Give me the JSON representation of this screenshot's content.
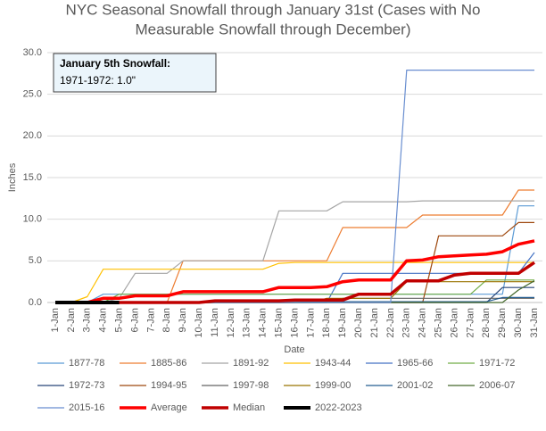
{
  "chart_data": {
    "type": "line",
    "title": [
      "NYC Seasonal Snowfall through January 31st (Cases with No",
      "Measurable Snowfall through December)"
    ],
    "x_label": "Date",
    "y_label": "Inches",
    "annotation": [
      "January 5th Snowfall:",
      "1971-1972: 1.0\""
    ],
    "categories": [
      "1-Jan",
      "2-Jan",
      "3-Jan",
      "4-Jan",
      "5-Jan",
      "6-Jan",
      "7-Jan",
      "8-Jan",
      "9-Jan",
      "10-Jan",
      "11-Jan",
      "12-Jan",
      "13-Jan",
      "14-Jan",
      "15-Jan",
      "16-Jan",
      "17-Jan",
      "18-Jan",
      "19-Jan",
      "20-Jan",
      "21-Jan",
      "22-Jan",
      "23-Jan",
      "24-Jan",
      "25-Jan",
      "26-Jan",
      "27-Jan",
      "28-Jan",
      "29-Jan",
      "30-Jan",
      "31-Jan"
    ],
    "ylim": [
      0,
      30
    ],
    "yticks": [
      {
        "value": 0,
        "label": "0.0"
      },
      {
        "value": 5,
        "label": "5.0"
      },
      {
        "value": 10,
        "label": "10.0"
      },
      {
        "value": 15,
        "label": "15.0"
      },
      {
        "value": 20,
        "label": "20.0"
      },
      {
        "value": 25,
        "label": "25.0"
      },
      {
        "value": 30,
        "label": "30.0"
      }
    ],
    "grid": true,
    "legend": "bottom",
    "series": [
      {
        "name": "1877-78",
        "color": "#5b9bd5",
        "line_width": 1.2,
        "values": [
          0,
          0,
          0,
          1.0,
          1.0,
          1.0,
          1.0,
          1.0,
          1.0,
          1.0,
          1.0,
          1.0,
          1.0,
          1.0,
          1.0,
          1.0,
          1.0,
          1.0,
          1.0,
          1.0,
          1.0,
          1.0,
          1.0,
          1.0,
          1.0,
          1.0,
          1.0,
          1.0,
          1.0,
          11.6,
          11.6
        ]
      },
      {
        "name": "1885-86",
        "color": "#ed7d31",
        "line_width": 1.2,
        "values": [
          0,
          0,
          0,
          0,
          0,
          0,
          0,
          0,
          5.0,
          5.0,
          5.0,
          5.0,
          5.0,
          5.0,
          5.0,
          5.0,
          5.0,
          5.0,
          9.0,
          9.0,
          9.0,
          9.0,
          9.0,
          10.5,
          10.5,
          10.5,
          10.5,
          10.5,
          10.5,
          13.5,
          13.5
        ]
      },
      {
        "name": "1891-92",
        "color": "#a5a5a5",
        "line_width": 1.2,
        "values": [
          0,
          0,
          0,
          0,
          0.5,
          3.5,
          3.5,
          3.5,
          5.0,
          5.0,
          5.0,
          5.0,
          5.0,
          5.0,
          11.0,
          11.0,
          11.0,
          11.0,
          12.1,
          12.1,
          12.1,
          12.1,
          12.1,
          12.2,
          12.2,
          12.2,
          12.2,
          12.2,
          12.2,
          12.2,
          12.2
        ]
      },
      {
        "name": "1943-44",
        "color": "#ffc000",
        "line_width": 1.2,
        "values": [
          0,
          0,
          0.7,
          4.0,
          4.0,
          4.0,
          4.0,
          4.0,
          4.0,
          4.0,
          4.0,
          4.0,
          4.0,
          4.0,
          4.7,
          4.8,
          4.8,
          4.8,
          4.8,
          4.8,
          4.8,
          4.8,
          4.8,
          4.8,
          4.8,
          4.8,
          4.8,
          4.8,
          4.8,
          4.8,
          4.8
        ]
      },
      {
        "name": "1965-66",
        "color": "#4472c4",
        "line_width": 1.2,
        "values": [
          0,
          0,
          0,
          0,
          0,
          0,
          0,
          0,
          0,
          0,
          0,
          0,
          0,
          0,
          0,
          0,
          0,
          0,
          3.5,
          3.5,
          3.5,
          3.5,
          3.5,
          3.5,
          3.5,
          3.5,
          3.5,
          3.5,
          3.5,
          3.5,
          6.0
        ]
      },
      {
        "name": "1971-72",
        "color": "#70ad47",
        "line_width": 1.2,
        "values": [
          0,
          0,
          0,
          0,
          1.0,
          1.0,
          1.0,
          1.0,
          1.0,
          1.0,
          1.0,
          1.0,
          1.0,
          1.0,
          1.0,
          1.0,
          1.0,
          1.0,
          1.0,
          1.0,
          1.0,
          1.0,
          1.0,
          1.0,
          1.0,
          1.0,
          1.0,
          2.7,
          2.7,
          2.7,
          2.7
        ]
      },
      {
        "name": "1972-73",
        "color": "#264478",
        "line_width": 1.2,
        "values": [
          0,
          0,
          0,
          0,
          0,
          0,
          0,
          0,
          0,
          0,
          0,
          0,
          0,
          0,
          0,
          0,
          0,
          0,
          0,
          0,
          0,
          0,
          0,
          0,
          0,
          0,
          0,
          0,
          1.8,
          1.8,
          1.8
        ]
      },
      {
        "name": "1994-95",
        "color": "#9e480e",
        "line_width": 1.2,
        "values": [
          0,
          0,
          0,
          0,
          0,
          0,
          0,
          0,
          0,
          0,
          0,
          0,
          0,
          0,
          0,
          0,
          0,
          0,
          0,
          0,
          0,
          0,
          0,
          0,
          8.0,
          8.0,
          8.0,
          8.0,
          8.0,
          9.6,
          9.6
        ]
      },
      {
        "name": "1997-98",
        "color": "#636363",
        "line_width": 1.2,
        "values": [
          0,
          0,
          0,
          0,
          0,
          0,
          0,
          0,
          0,
          0,
          0,
          0,
          0,
          0,
          0,
          0,
          0,
          0,
          0.5,
          0.5,
          0.5,
          0.5,
          0.5,
          0.5,
          0.5,
          0.5,
          0.5,
          0.5,
          0.5,
          0.5,
          0.5
        ]
      },
      {
        "name": "1999-00",
        "color": "#997300",
        "line_width": 1.2,
        "values": [
          0,
          0,
          0,
          0,
          0,
          0,
          0,
          0,
          0,
          0,
          0,
          0,
          0,
          0,
          0,
          0,
          0,
          0.5,
          0.5,
          0.5,
          0.5,
          0.5,
          2.5,
          2.5,
          2.5,
          2.5,
          2.5,
          2.5,
          2.5,
          2.5,
          2.5
        ]
      },
      {
        "name": "2001-02",
        "color": "#255e91",
        "line_width": 1.2,
        "values": [
          0,
          0,
          0,
          0,
          0,
          0,
          0,
          0,
          0,
          0,
          0,
          0,
          0,
          0,
          0,
          0,
          0.1,
          0.1,
          0.1,
          0.1,
          0.1,
          0.1,
          0.1,
          0.1,
          0.1,
          0.1,
          0.1,
          0.1,
          0.6,
          0.6,
          0.6
        ]
      },
      {
        "name": "2006-07",
        "color": "#43682b",
        "line_width": 1.2,
        "values": [
          0,
          0,
          0,
          0,
          0,
          0,
          0,
          0,
          0,
          0,
          0,
          0,
          0,
          0,
          0,
          0,
          0,
          0,
          0,
          0,
          0,
          0,
          0,
          0,
          0,
          0,
          0,
          0,
          0,
          1.5,
          2.6
        ]
      },
      {
        "name": "2015-16",
        "color": "#698ed0",
        "line_width": 1.2,
        "values": [
          0,
          0,
          0,
          0,
          0,
          0,
          0,
          0,
          0,
          0,
          0,
          0,
          0,
          0,
          0,
          0,
          0,
          0,
          0,
          0,
          0,
          0,
          27.9,
          27.9,
          27.9,
          27.9,
          27.9,
          27.9,
          27.9,
          27.9,
          27.9
        ]
      },
      {
        "name": "Average",
        "color": "#ff0000",
        "line_width": 3.5,
        "values": [
          0,
          0,
          0,
          0.5,
          0.5,
          0.8,
          0.8,
          0.8,
          1.3,
          1.3,
          1.3,
          1.3,
          1.3,
          1.3,
          1.8,
          1.8,
          1.8,
          1.9,
          2.5,
          2.7,
          2.7,
          2.7,
          5.0,
          5.1,
          5.5,
          5.6,
          5.7,
          5.8,
          6.1,
          7.0,
          7.4
        ]
      },
      {
        "name": "Median",
        "color": "#c00000",
        "line_width": 3.5,
        "values": [
          0,
          0,
          0,
          0,
          0,
          0,
          0,
          0,
          0,
          0,
          0.2,
          0.2,
          0.2,
          0.2,
          0.2,
          0.3,
          0.3,
          0.3,
          0.3,
          1.0,
          1.0,
          1.0,
          2.6,
          2.6,
          2.6,
          3.3,
          3.5,
          3.5,
          3.5,
          3.5,
          4.8
        ]
      },
      {
        "name": "2022-2023",
        "color": "#000000",
        "line_width": 4,
        "values": [
          0,
          0,
          0,
          0,
          0,
          null,
          null,
          null,
          null,
          null,
          null,
          null,
          null,
          null,
          null,
          null,
          null,
          null,
          null,
          null,
          null,
          null,
          null,
          null,
          null,
          null,
          null,
          null,
          null,
          null,
          null
        ]
      }
    ]
  }
}
